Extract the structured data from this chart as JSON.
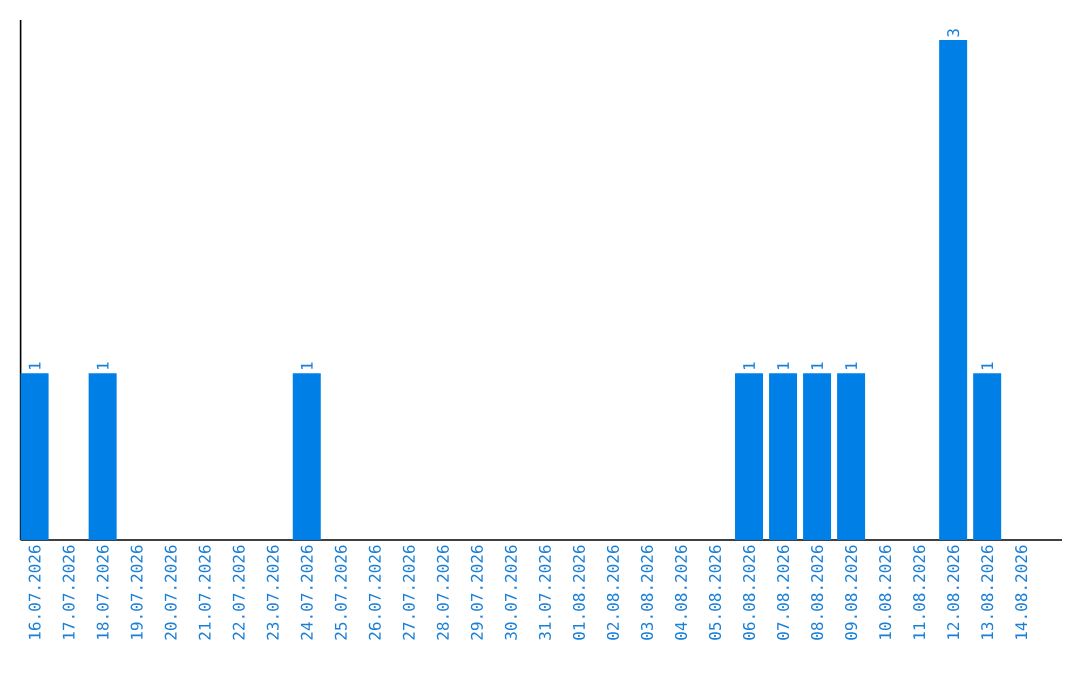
{
  "chart_data": {
    "type": "bar",
    "color": "#0080e6",
    "ylim": [
      0,
      3.12
    ],
    "tick_labels": "x",
    "categories": [
      "16.07.2026",
      "17.07.2026",
      "18.07.2026",
      "19.07.2026",
      "20.07.2026",
      "21.07.2026",
      "22.07.2026",
      "23.07.2026",
      "24.07.2026",
      "25.07.2026",
      "26.07.2026",
      "27.07.2026",
      "28.07.2026",
      "29.07.2026",
      "30.07.2026",
      "31.07.2026",
      "01.08.2026",
      "02.08.2026",
      "03.08.2026",
      "04.08.2026",
      "05.08.2026",
      "06.08.2026",
      "07.08.2026",
      "08.08.2026",
      "09.08.2026",
      "10.08.2026",
      "11.08.2026",
      "12.08.2026",
      "13.08.2026",
      "14.08.2026"
    ],
    "values": [
      1,
      0,
      1,
      0,
      0,
      0,
      0,
      0,
      1,
      0,
      0,
      0,
      0,
      0,
      0,
      0,
      0,
      0,
      0,
      0,
      0,
      1,
      1,
      1,
      1,
      0,
      0,
      3,
      1,
      0
    ],
    "value_labels": [
      "1",
      null,
      "1",
      null,
      null,
      null,
      null,
      null,
      "1",
      null,
      null,
      null,
      null,
      null,
      null,
      null,
      null,
      null,
      null,
      null,
      null,
      "1",
      "1",
      "1",
      "1",
      null,
      null,
      "3",
      "1",
      null
    ]
  }
}
